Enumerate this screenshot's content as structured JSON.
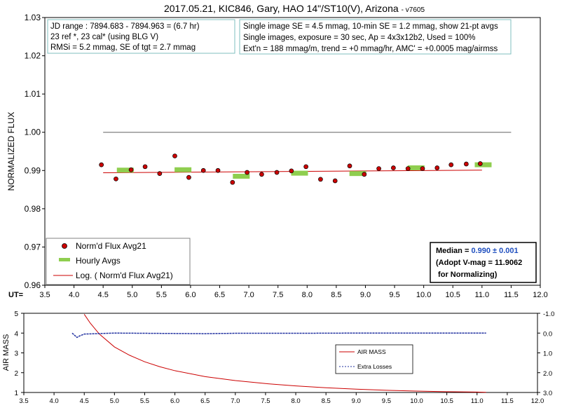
{
  "chart_data": [
    {
      "type": "scatter",
      "title": "2017.05.21, KIC846, Gary, HAO 14\"/ST10(V), Arizona",
      "title_suffix": "- v7605",
      "ylabel": "NORMALIZED FLUX",
      "xlabel": "UT=",
      "xlim": [
        3.5,
        12.0
      ],
      "ylim": [
        0.96,
        1.03
      ],
      "x_ticks": [
        "3.5",
        "4.0",
        "4.5",
        "5.0",
        "5.5",
        "6.0",
        "6.5",
        "7.0",
        "7.5",
        "8.0",
        "8.5",
        "9.0",
        "9.5",
        "10.0",
        "10.5",
        "11.0",
        "11.5",
        "12.0"
      ],
      "y_ticks": [
        "0.96",
        "0.97",
        "0.98",
        "0.99",
        "1.00",
        "1.01",
        "1.02",
        "1.03"
      ],
      "reference_line": 1.0,
      "info_left": [
        "JD range : 7894.683 - 7894.963 = (6.7 hr)",
        "23 ref *, 23 cal* (using BLG V)",
        "RMSi = 5.2 mmag, SE of tgt = 2.7 mmag"
      ],
      "info_right": [
        "Single image SE = 4.5 mmag, 10-min SE = 1.2 mmag, show 21-pt avgs",
        "Single images, exposure = 30 sec, Ap = 4x3x12b2, Used = 100%",
        "Ext'n = 188 mmag/m, trend = +0 mmag/hr, AMC' = +0.0005 mag/airmss"
      ],
      "legend": [
        "Norm'd Flux Avg21",
        "Hourly Avgs",
        "Log. ( Norm'd Flux Avg21)"
      ],
      "median_box": {
        "label": "Median = ",
        "value": "0.990 ± 0.001",
        "line2": "(Adopt V-mag = 11.9062",
        "line3": " for Normalizing)"
      },
      "colors": {
        "points": "#cc0000",
        "hourly": "#8fce4f",
        "trend": "#cc0000",
        "median_value": "#1f4fbf",
        "ref_line": "#808080"
      },
      "series": [
        {
          "name": "Norm'd Flux Avg21",
          "x": [
            4.47,
            4.72,
            4.98,
            5.22,
            5.47,
            5.73,
            5.97,
            6.22,
            6.47,
            6.72,
            6.97,
            7.22,
            7.48,
            7.73,
            7.98,
            8.23,
            8.48,
            8.73,
            8.98,
            9.23,
            9.48,
            9.73,
            9.98,
            10.23,
            10.47,
            10.73,
            10.97
          ],
          "y": [
            0.9915,
            0.9878,
            0.9902,
            0.991,
            0.9892,
            0.9938,
            0.9882,
            0.99,
            0.99,
            0.9869,
            0.9895,
            0.989,
            0.9895,
            0.9899,
            0.991,
            0.9877,
            0.9873,
            0.9912,
            0.989,
            0.9905,
            0.9907,
            0.9905,
            0.9905,
            0.9907,
            0.9915,
            0.9917,
            0.9918
          ]
        },
        {
          "name": "Hourly Avgs",
          "x": [
            4.88,
            5.87,
            6.87,
            7.87,
            8.87,
            9.87,
            11.02
          ],
          "y": [
            0.9901,
            0.9902,
            0.9885,
            0.9893,
            0.9892,
            0.9907,
            0.9915
          ]
        },
        {
          "name": "Log. ( Norm'd Flux Avg21)",
          "x": [
            4.5,
            11.0
          ],
          "y": [
            0.9894,
            0.9901
          ]
        }
      ]
    },
    {
      "type": "line",
      "ylabel": "AIR MASS",
      "xlim": [
        3.5,
        12.0
      ],
      "ylim": [
        1,
        5
      ],
      "y2lim": [
        3.0,
        -1.0
      ],
      "x_ticks": [
        "3.5",
        "4.0",
        "4.5",
        "5.0",
        "5.5",
        "6.0",
        "6.5",
        "7.0",
        "7.5",
        "8.0",
        "8.5",
        "9.0",
        "9.5",
        "10.0",
        "10.5",
        "11.0",
        "11.5",
        "12.0"
      ],
      "y_ticks": [
        "1",
        "2",
        "3",
        "4",
        "5"
      ],
      "y2_ticks": [
        "3.0",
        "2.0",
        "1.0",
        "0.0",
        "-1.0"
      ],
      "legend": [
        "AIR MASS",
        "Extra Losses"
      ],
      "colors": {
        "airmass": "#cc0000",
        "losses": "#1f2f9f"
      },
      "series": [
        {
          "name": "AIR MASS",
          "x": [
            4.5,
            4.6,
            4.75,
            5.0,
            5.25,
            5.5,
            5.75,
            6.0,
            6.5,
            7.0,
            7.5,
            8.0,
            8.5,
            9.0,
            9.5,
            10.0,
            10.5,
            11.0,
            11.15
          ],
          "y": [
            4.95,
            4.5,
            3.95,
            3.3,
            2.88,
            2.55,
            2.3,
            2.1,
            1.8,
            1.6,
            1.45,
            1.33,
            1.24,
            1.17,
            1.11,
            1.07,
            1.04,
            1.02,
            1.01
          ]
        },
        {
          "name": "Extra Losses",
          "x": [
            4.3,
            4.38,
            4.42,
            4.5,
            5.0,
            6.0,
            6.5,
            7.0,
            8.0,
            9.0,
            10.0,
            11.0,
            11.15
          ],
          "y": [
            0.0,
            0.22,
            0.15,
            0.05,
            0.0,
            0.02,
            0.03,
            0.01,
            0.01,
            0.0,
            0.0,
            0.0,
            0.0
          ]
        }
      ]
    }
  ]
}
